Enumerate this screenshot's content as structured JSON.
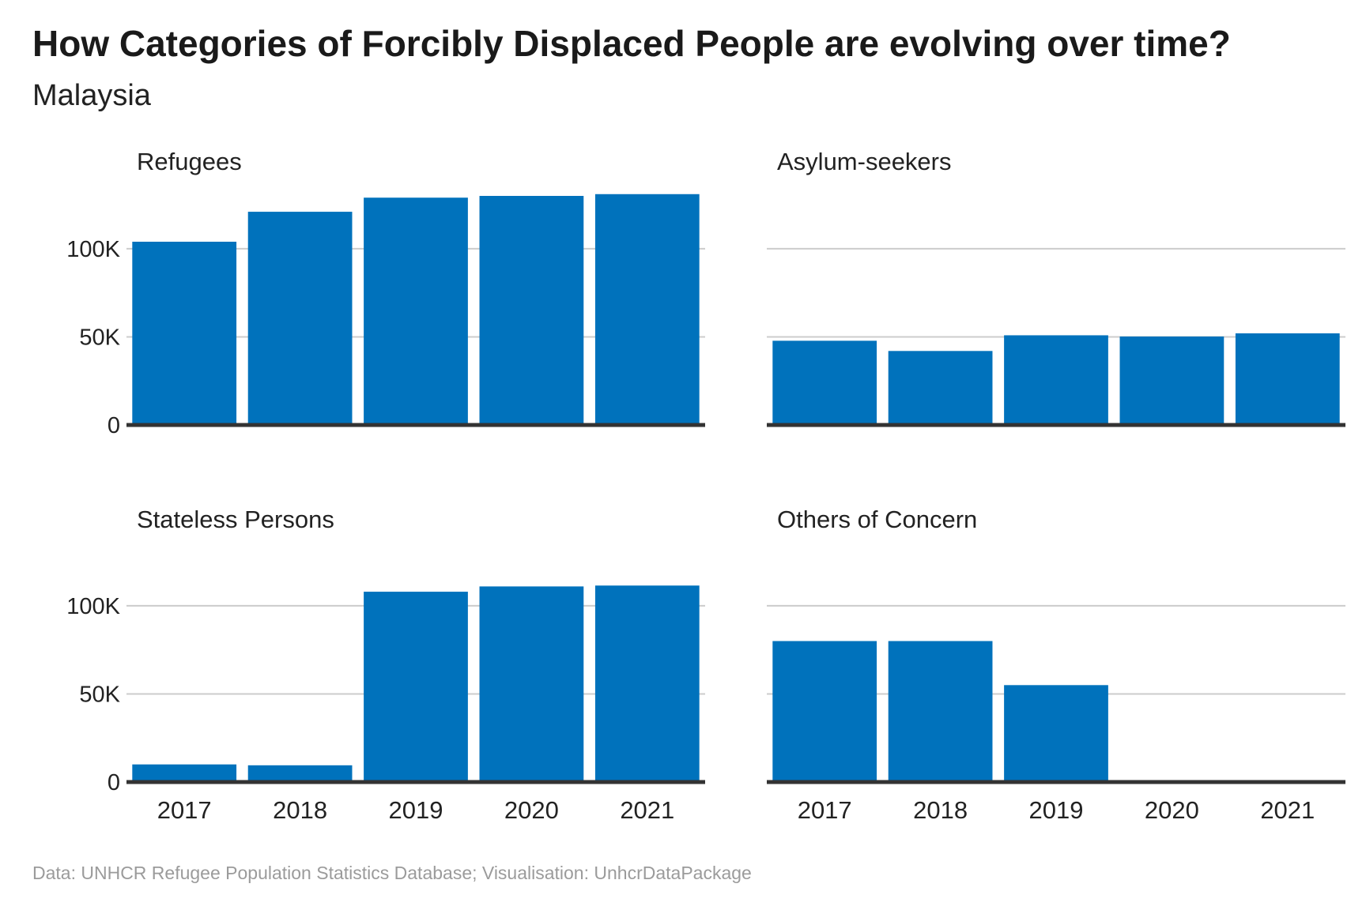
{
  "title": "How Categories of Forcibly Displaced People are evolving over time?",
  "subtitle": "Malaysia",
  "caption": "Data: UNHCR Refugee Population Statistics Database; Visualisation: UnhcrDataPackage",
  "colors": {
    "bar": "#0072BC",
    "grid": "#cccccc",
    "baseline": "#333333",
    "text": "#222222",
    "caption": "#9b9b9b"
  },
  "chart_data": {
    "type": "bar",
    "facet": "Population type",
    "categories": [
      "2017",
      "2018",
      "2019",
      "2020",
      "2021"
    ],
    "ylim": [
      0,
      130000
    ],
    "yticks": [
      0,
      50000,
      100000
    ],
    "ytick_labels": [
      "0",
      "50K",
      "100K"
    ],
    "grid": "horizontal",
    "panels": [
      {
        "name": "Refugees",
        "values": [
          104000,
          121000,
          129000,
          130000,
          131000
        ]
      },
      {
        "name": "Asylum-seekers",
        "values": [
          47800,
          42000,
          50900,
          50200,
          52000
        ]
      },
      {
        "name": "Stateless Persons",
        "values": [
          10000,
          9500,
          108000,
          111000,
          111500
        ]
      },
      {
        "name": "Others of Concern",
        "values": [
          80000,
          80000,
          55000,
          0,
          0
        ]
      }
    ]
  }
}
